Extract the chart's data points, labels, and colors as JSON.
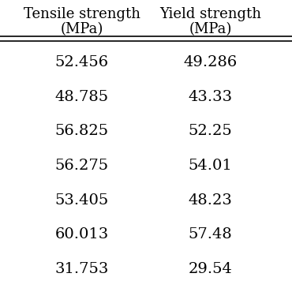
{
  "col1_header_line1": "Tensile strength",
  "col1_header_line2": "(MPa)",
  "col2_header_line1": "Yield strength",
  "col2_header_line2": "(MPa)",
  "col1_values": [
    "52.456",
    "48.785",
    "56.825",
    "56.275",
    "53.405",
    "60.013",
    "31.753"
  ],
  "col2_values": [
    "49.286",
    "43.33",
    "52.25",
    "54.01",
    "48.23",
    "57.48",
    "29.54"
  ],
  "background_color": "#ffffff",
  "text_color": "#000000",
  "header_fontsize": 13,
  "cell_fontsize": 14,
  "line_color": "#000000"
}
